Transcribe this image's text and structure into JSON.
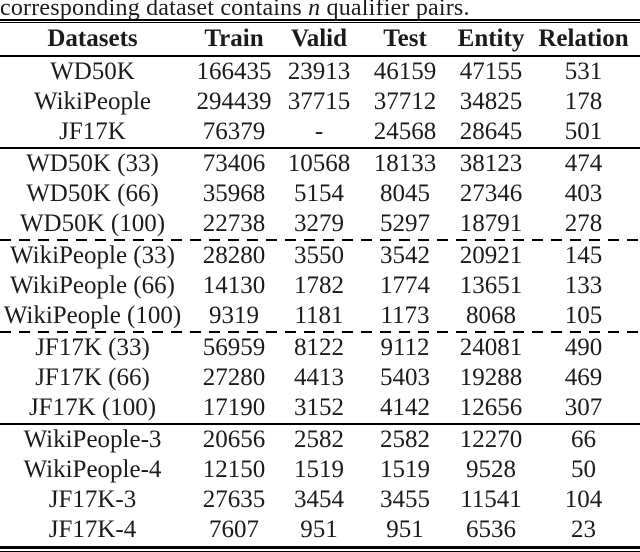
{
  "caption": {
    "prefix": "corresponding dataset contains ",
    "math_var": "n",
    "suffix": " qualifier pairs."
  },
  "table": {
    "headers": [
      "Datasets",
      "Train",
      "Valid",
      "Test",
      "Entity",
      "Relation"
    ],
    "groups": [
      {
        "separator_after": "solid",
        "rows": [
          [
            "WD50K",
            "166435",
            "23913",
            "46159",
            "47155",
            "531"
          ],
          [
            "WikiPeople",
            "294439",
            "37715",
            "37712",
            "34825",
            "178"
          ],
          [
            "JF17K",
            "76379",
            "-",
            "24568",
            "28645",
            "501"
          ]
        ]
      },
      {
        "separator_after": "dashed",
        "rows": [
          [
            "WD50K (33)",
            "73406",
            "10568",
            "18133",
            "38123",
            "474"
          ],
          [
            "WD50K (66)",
            "35968",
            "5154",
            "8045",
            "27346",
            "403"
          ],
          [
            "WD50K (100)",
            "22738",
            "3279",
            "5297",
            "18791",
            "278"
          ]
        ]
      },
      {
        "separator_after": "dashed",
        "rows": [
          [
            "WikiPeople (33)",
            "28280",
            "3550",
            "3542",
            "20921",
            "145"
          ],
          [
            "WikiPeople (66)",
            "14130",
            "1782",
            "1774",
            "13651",
            "133"
          ],
          [
            "WikiPeople (100)",
            "9319",
            "1181",
            "1173",
            "8068",
            "105"
          ]
        ]
      },
      {
        "separator_after": "solid",
        "rows": [
          [
            "JF17K (33)",
            "56959",
            "8122",
            "9112",
            "24081",
            "490"
          ],
          [
            "JF17K (66)",
            "27280",
            "4413",
            "5403",
            "19288",
            "469"
          ],
          [
            "JF17K (100)",
            "17190",
            "3152",
            "4142",
            "12656",
            "307"
          ]
        ]
      },
      {
        "separator_after": "none",
        "rows": [
          [
            "WikiPeople-3",
            "20656",
            "2582",
            "2582",
            "12270",
            "66"
          ],
          [
            "WikiPeople-4",
            "12150",
            "1519",
            "1519",
            "9528",
            "50"
          ],
          [
            "JF17K-3",
            "27635",
            "3454",
            "3455",
            "11541",
            "104"
          ],
          [
            "JF17K-4",
            "7607",
            "951",
            "951",
            "6536",
            "23"
          ]
        ]
      }
    ],
    "colors": {
      "text": "#1b1b1b",
      "rule": "#000000",
      "background": "#ffffff"
    }
  }
}
